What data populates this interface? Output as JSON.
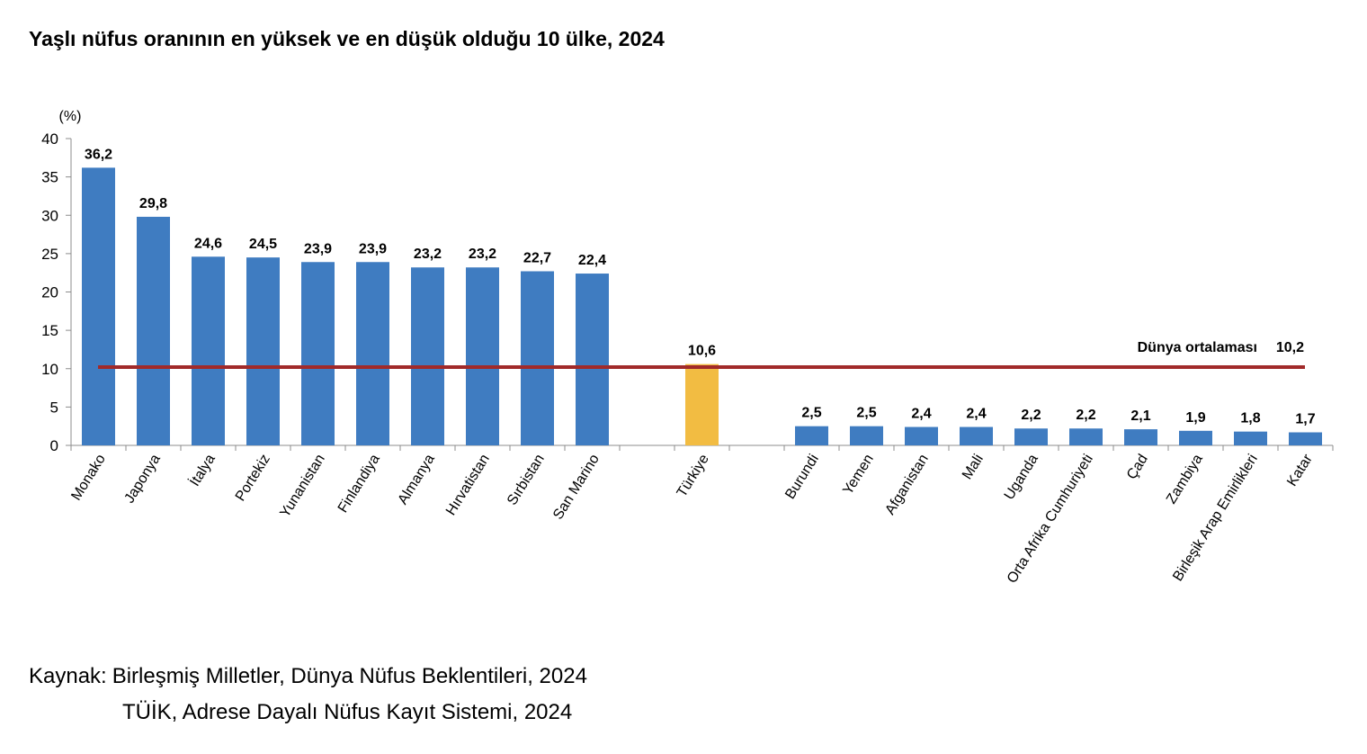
{
  "title": "Yaşlı nüfus oranının en yüksek ve en düşük olduğu 10 ülke, 2024",
  "source": {
    "label": "Kaynak:",
    "line1": "Birleşmiş Milletler, Dünya Nüfus Beklentileri, 2024",
    "line2": "TÜİK, Adrese Dayalı Nüfus Kayıt Sistemi, 2024"
  },
  "colors": {
    "bar": "#3f7cc1",
    "highlight": "#f2bc42",
    "average_line": "#a12a2a",
    "axis": "#8c8c8c"
  },
  "chart_data": {
    "type": "bar",
    "title": "Yaşlı nüfus oranının en yüksek ve en düşük olduğu 10 ülke, 2024",
    "ylabel": "(%)",
    "ylim": [
      0,
      40
    ],
    "yticks": [
      0,
      5,
      10,
      15,
      20,
      25,
      30,
      35,
      40
    ],
    "grid": false,
    "highlight_category": "Türkiye",
    "categories": [
      "Monako",
      "Japonya",
      "İtalya",
      "Portekiz",
      "Yunanistan",
      "Finlandiya",
      "Almanya",
      "Hırvatistan",
      "Sırbistan",
      "San Marino",
      "",
      "Türkiye",
      "",
      "Burundi",
      "Yemen",
      "Afganistan",
      "Mali",
      "Uganda",
      "Orta Afrika Cumhuriyeti",
      "Çad",
      "Zambiya",
      "Birleşik Arap Emirlikleri",
      "Katar"
    ],
    "values": [
      36.2,
      29.8,
      24.6,
      24.5,
      23.9,
      23.9,
      23.2,
      23.2,
      22.7,
      22.4,
      null,
      10.6,
      null,
      2.5,
      2.5,
      2.4,
      2.4,
      2.2,
      2.2,
      2.1,
      1.9,
      1.8,
      1.7
    ],
    "value_labels": [
      "36,2",
      "29,8",
      "24,6",
      "24,5",
      "23,9",
      "23,9",
      "23,2",
      "23,2",
      "22,7",
      "22,4",
      "",
      "10,6",
      "",
      "2,5",
      "2,5",
      "2,4",
      "2,4",
      "2,2",
      "2,2",
      "2,1",
      "1,9",
      "1,8",
      "1,7"
    ],
    "reference_line": {
      "name": "Dünya ortalaması",
      "value": 10.2,
      "value_label": "10,2"
    }
  }
}
